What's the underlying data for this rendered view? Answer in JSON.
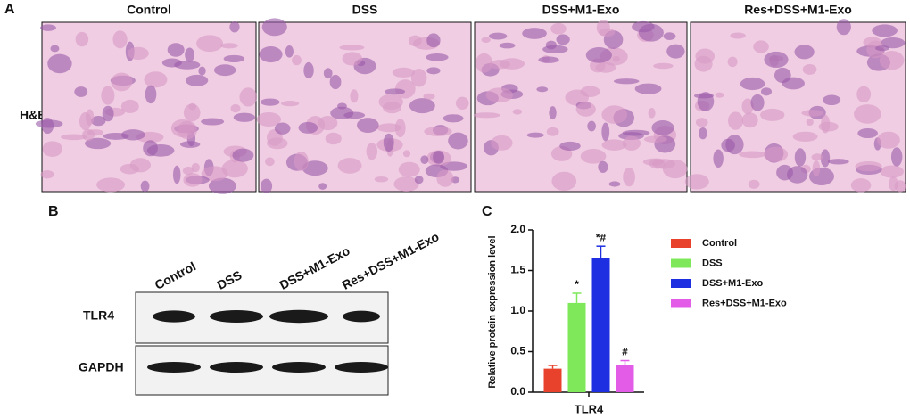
{
  "panel_labels": [
    "A",
    "B",
    "C"
  ],
  "he": {
    "row_label": "H&E",
    "columns": [
      "Control",
      "DSS",
      "DSS+M1-Exo",
      "Res+DSS+M1-Exo"
    ]
  },
  "western": {
    "lanes": [
      "Control",
      "DSS",
      "DSS+M1-Exo",
      "Res+DSS+M1-Exo"
    ],
    "rows": [
      "TLR4",
      "GAPDH"
    ]
  },
  "chart_data": {
    "type": "bar",
    "ylabel": "Relative protein expression level",
    "categories": [
      "TLR4"
    ],
    "series": [
      {
        "name": "Control",
        "color": "#e8412c",
        "values": [
          0.29
        ],
        "errors": [
          0.04
        ],
        "annotations": [
          null
        ]
      },
      {
        "name": "DSS",
        "color": "#7ee85a",
        "values": [
          1.1
        ],
        "errors": [
          0.12
        ],
        "annotations": [
          "*"
        ]
      },
      {
        "name": "DSS+M1-Exo",
        "color": "#1d2fe0",
        "values": [
          1.65
        ],
        "errors": [
          0.15
        ],
        "annotations": [
          "*#"
        ]
      },
      {
        "name": "Res+DSS+M1-Exo",
        "color": "#e25ce8",
        "values": [
          0.34
        ],
        "errors": [
          0.05
        ],
        "annotations": [
          "#"
        ]
      }
    ],
    "ylim": [
      0,
      2.0
    ],
    "yticks": [
      {
        "value": 0,
        "label": "0.0"
      },
      {
        "value": 0.5,
        "label": "0.5"
      },
      {
        "value": 1.0,
        "label": "1.0"
      },
      {
        "value": 1.5,
        "label": "1.5"
      },
      {
        "value": 2.0,
        "label": "2.0"
      }
    ]
  }
}
